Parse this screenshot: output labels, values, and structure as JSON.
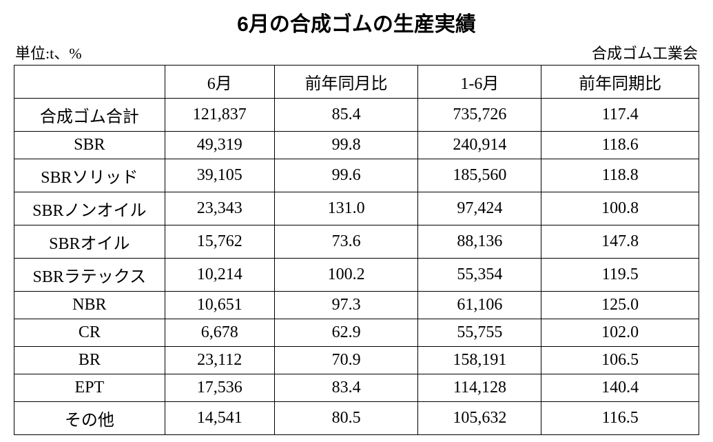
{
  "title": "6月の合成ゴムの生産実績",
  "unit_label": "単位:t、%",
  "source_label": "合成ゴム工業会",
  "columns": [
    "",
    "6月",
    "前年同月比",
    "1-6月",
    "前年同期比"
  ],
  "rows": [
    {
      "label": "合成ゴム合計",
      "june": "121,837",
      "yoy_month": "85.4",
      "jan_june": "735,726",
      "yoy_period": "117.4"
    },
    {
      "label": "SBR",
      "june": "49,319",
      "yoy_month": "99.8",
      "jan_june": "240,914",
      "yoy_period": "118.6"
    },
    {
      "label": "SBRソリッド",
      "june": "39,105",
      "yoy_month": "99.6",
      "jan_june": "185,560",
      "yoy_period": "118.8"
    },
    {
      "label": "SBRノンオイル",
      "june": "23,343",
      "yoy_month": "131.0",
      "jan_june": "97,424",
      "yoy_period": "100.8"
    },
    {
      "label": "SBRオイル",
      "june": "15,762",
      "yoy_month": "73.6",
      "jan_june": "88,136",
      "yoy_period": "147.8"
    },
    {
      "label": "SBRラテックス",
      "june": "10,214",
      "yoy_month": "100.2",
      "jan_june": "55,354",
      "yoy_period": "119.5"
    },
    {
      "label": "NBR",
      "june": "10,651",
      "yoy_month": "97.3",
      "jan_june": "61,106",
      "yoy_period": "125.0"
    },
    {
      "label": "CR",
      "june": "6,678",
      "yoy_month": "62.9",
      "jan_june": "55,755",
      "yoy_period": "102.0"
    },
    {
      "label": "BR",
      "june": "23,112",
      "yoy_month": "70.9",
      "jan_june": "158,191",
      "yoy_period": "106.5"
    },
    {
      "label": "EPT",
      "june": "17,536",
      "yoy_month": "83.4",
      "jan_june": "114,128",
      "yoy_period": "140.4"
    },
    {
      "label": "その他",
      "june": "14,541",
      "yoy_month": "80.5",
      "jan_june": "105,632",
      "yoy_period": "116.5"
    }
  ],
  "style": {
    "background_color": "#ffffff",
    "text_color": "#000000",
    "border_color": "#000000",
    "title_fontsize": 30,
    "cell_fontsize": 24,
    "meta_fontsize": 22,
    "column_widths_pct": [
      22,
      16,
      21,
      18,
      23
    ]
  }
}
